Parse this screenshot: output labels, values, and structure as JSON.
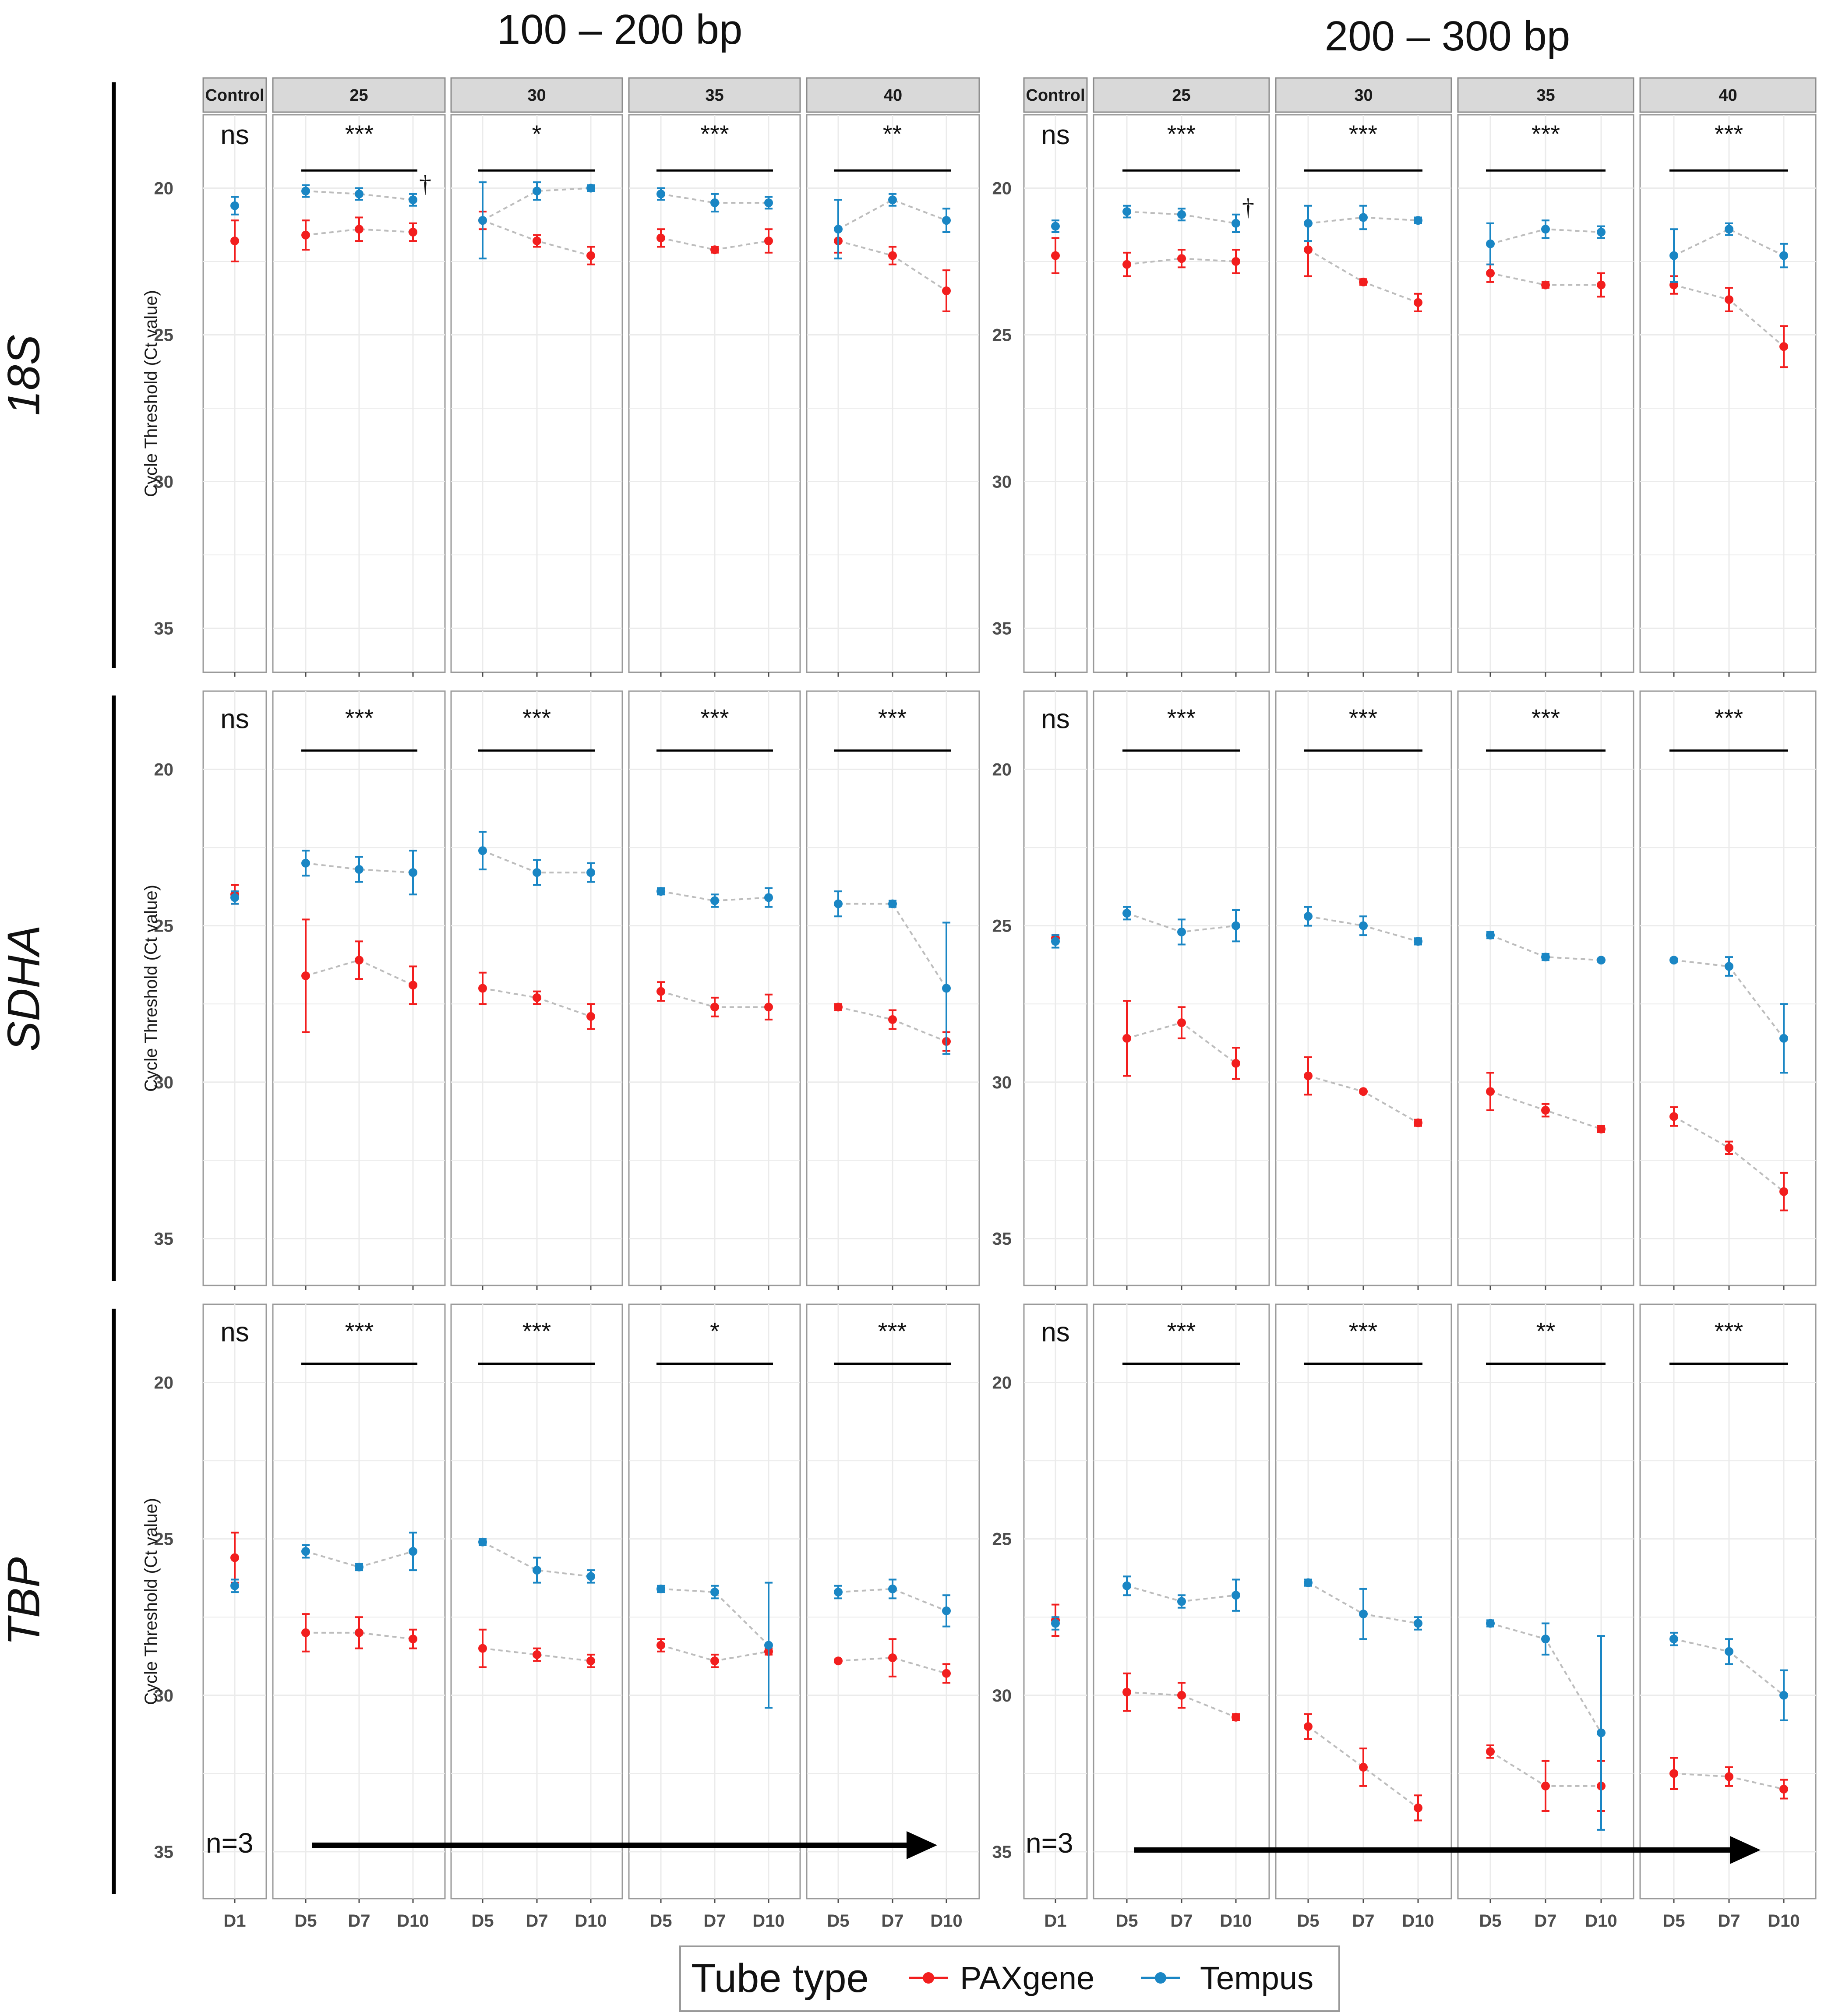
{
  "titles": {
    "left": "100 – 200 bp",
    "right": "200 – 300 bp"
  },
  "genes": [
    "18S",
    "SDHA",
    "TBP"
  ],
  "strip_labels": [
    "Control",
    "25",
    "30",
    "35",
    "40"
  ],
  "x_labels": {
    "control": [
      "D1"
    ],
    "temp": [
      "D5",
      "D7",
      "D10"
    ]
  },
  "y_axis": {
    "label": "Cycle Threshold (Ct value)",
    "ticks": [
      "20",
      "25",
      "30",
      "35"
    ],
    "min": 17.5,
    "max": 36.5
  },
  "n_label": "n=3",
  "legend": {
    "title": "Tube type",
    "items": [
      {
        "label": "PAXgene",
        "color": "#f21e1e"
      },
      {
        "label": "Tempus",
        "color": "#1a86c4"
      }
    ]
  },
  "colors": {
    "paxgene": "#f21e1e",
    "tempus": "#1a86c4",
    "strip_bg": "#d9d9d9",
    "grid": "#ebebeb",
    "connector": "#bdbdbd"
  },
  "chart_data": [
    {
      "type": "scatter",
      "gene": "18S",
      "group": "100 – 200 bp",
      "panels": [
        {
          "strip": "Control",
          "sig": "ns",
          "dagger": false,
          "paxgene": [
            21.8
          ],
          "paxgene_err": [
            0.7
          ],
          "tempus": [
            20.6
          ],
          "tempus_err": [
            0.3
          ]
        },
        {
          "strip": "25",
          "sig": "***",
          "dagger": true,
          "paxgene": [
            21.6,
            21.4,
            21.5
          ],
          "paxgene_err": [
            0.5,
            0.4,
            0.3
          ],
          "tempus": [
            20.1,
            20.2,
            20.4
          ],
          "tempus_err": [
            0.2,
            0.2,
            0.2
          ]
        },
        {
          "strip": "30",
          "sig": "*",
          "dagger": false,
          "paxgene": [
            21.1,
            21.8,
            22.3
          ],
          "paxgene_err": [
            0.3,
            0.2,
            0.3
          ],
          "tempus": [
            21.1,
            20.1,
            20.0
          ],
          "tempus_err": [
            1.3,
            0.3,
            0.1
          ]
        },
        {
          "strip": "35",
          "sig": "***",
          "dagger": false,
          "paxgene": [
            21.7,
            22.1,
            21.8
          ],
          "paxgene_err": [
            0.3,
            0.1,
            0.4
          ],
          "tempus": [
            20.2,
            20.5,
            20.5
          ],
          "tempus_err": [
            0.2,
            0.3,
            0.2
          ]
        },
        {
          "strip": "40",
          "sig": "**",
          "dagger": false,
          "paxgene": [
            21.8,
            22.3,
            23.5
          ],
          "paxgene_err": [
            0.4,
            0.3,
            0.7
          ],
          "tempus": [
            21.4,
            20.4,
            21.1
          ],
          "tempus_err": [
            1.0,
            0.2,
            0.4
          ]
        }
      ]
    },
    {
      "type": "scatter",
      "gene": "18S",
      "group": "200 – 300 bp",
      "panels": [
        {
          "strip": "Control",
          "sig": "ns",
          "dagger": false,
          "paxgene": [
            22.3
          ],
          "paxgene_err": [
            0.6
          ],
          "tempus": [
            21.3
          ],
          "tempus_err": [
            0.2
          ]
        },
        {
          "strip": "25",
          "sig": "***",
          "dagger": true,
          "paxgene": [
            22.6,
            22.4,
            22.5
          ],
          "paxgene_err": [
            0.4,
            0.3,
            0.4
          ],
          "tempus": [
            20.8,
            20.9,
            21.2
          ],
          "tempus_err": [
            0.2,
            0.2,
            0.3
          ]
        },
        {
          "strip": "30",
          "sig": "***",
          "dagger": false,
          "paxgene": [
            22.1,
            23.2,
            23.9
          ],
          "paxgene_err": [
            0.9,
            0.1,
            0.3
          ],
          "tempus": [
            21.2,
            21.0,
            21.1
          ],
          "tempus_err": [
            0.6,
            0.4,
            0.1
          ]
        },
        {
          "strip": "35",
          "sig": "***",
          "dagger": false,
          "paxgene": [
            22.9,
            23.3,
            23.3
          ],
          "paxgene_err": [
            0.3,
            0.1,
            0.4
          ],
          "tempus": [
            21.9,
            21.4,
            21.5
          ],
          "tempus_err": [
            0.7,
            0.3,
            0.2
          ]
        },
        {
          "strip": "40",
          "sig": "***",
          "dagger": false,
          "paxgene": [
            23.3,
            23.8,
            25.4
          ],
          "paxgene_err": [
            0.3,
            0.4,
            0.7
          ],
          "tempus": [
            22.3,
            21.4,
            22.3
          ],
          "tempus_err": [
            0.9,
            0.2,
            0.4
          ]
        }
      ]
    },
    {
      "type": "scatter",
      "gene": "SDHA",
      "group": "100 – 200 bp",
      "panels": [
        {
          "strip": "Control",
          "sig": "ns",
          "dagger": false,
          "paxgene": [
            24.0
          ],
          "paxgene_err": [
            0.3
          ],
          "tempus": [
            24.1
          ],
          "tempus_err": [
            0.2
          ]
        },
        {
          "strip": "25",
          "sig": "***",
          "dagger": false,
          "paxgene": [
            26.6,
            26.1,
            26.9
          ],
          "paxgene_err": [
            1.8,
            0.6,
            0.6
          ],
          "tempus": [
            23.0,
            23.2,
            23.3
          ],
          "tempus_err": [
            0.4,
            0.4,
            0.7
          ]
        },
        {
          "strip": "30",
          "sig": "***",
          "dagger": false,
          "paxgene": [
            27.0,
            27.3,
            27.9
          ],
          "paxgene_err": [
            0.5,
            0.2,
            0.4
          ],
          "tempus": [
            22.6,
            23.3,
            23.3
          ],
          "tempus_err": [
            0.6,
            0.4,
            0.3
          ]
        },
        {
          "strip": "35",
          "sig": "***",
          "dagger": false,
          "paxgene": [
            27.1,
            27.6,
            27.6
          ],
          "paxgene_err": [
            0.3,
            0.3,
            0.4
          ],
          "tempus": [
            23.9,
            24.2,
            24.1
          ],
          "tempus_err": [
            0.1,
            0.2,
            0.3
          ]
        },
        {
          "strip": "40",
          "sig": "***",
          "dagger": false,
          "paxgene": [
            27.6,
            28.0,
            28.7
          ],
          "paxgene_err": [
            0.1,
            0.3,
            0.3
          ],
          "tempus": [
            24.3,
            24.3,
            27.0
          ],
          "tempus_err": [
            0.4,
            0.1,
            2.1
          ]
        }
      ]
    },
    {
      "type": "scatter",
      "gene": "SDHA",
      "group": "200 – 300 bp",
      "panels": [
        {
          "strip": "Control",
          "sig": "ns",
          "dagger": false,
          "paxgene": [
            25.4
          ],
          "paxgene_err": [
            0.1
          ],
          "tempus": [
            25.5
          ],
          "tempus_err": [
            0.2
          ]
        },
        {
          "strip": "25",
          "sig": "***",
          "dagger": false,
          "paxgene": [
            28.6,
            28.1,
            29.4
          ],
          "paxgene_err": [
            1.2,
            0.5,
            0.5
          ],
          "tempus": [
            24.6,
            25.2,
            25.0
          ],
          "tempus_err": [
            0.2,
            0.4,
            0.5
          ]
        },
        {
          "strip": "30",
          "sig": "***",
          "dagger": false,
          "paxgene": [
            29.8,
            30.3,
            31.3
          ],
          "paxgene_err": [
            0.6,
            0.05,
            0.1
          ],
          "tempus": [
            24.7,
            25.0,
            25.5
          ],
          "tempus_err": [
            0.3,
            0.3,
            0.1
          ]
        },
        {
          "strip": "35",
          "sig": "***",
          "dagger": false,
          "paxgene": [
            30.3,
            30.9,
            31.5
          ],
          "paxgene_err": [
            0.6,
            0.2,
            0.1
          ],
          "tempus": [
            25.3,
            26.0,
            26.1
          ],
          "tempus_err": [
            0.1,
            0.1,
            0.05
          ]
        },
        {
          "strip": "40",
          "sig": "***",
          "dagger": false,
          "paxgene": [
            31.1,
            32.1,
            33.5
          ],
          "paxgene_err": [
            0.3,
            0.2,
            0.6
          ],
          "tempus": [
            26.1,
            26.3,
            28.6
          ],
          "tempus_err": [
            0.05,
            0.3,
            1.1
          ]
        }
      ]
    },
    {
      "type": "scatter",
      "gene": "TBP",
      "group": "100 – 200 bp",
      "panels": [
        {
          "strip": "Control",
          "sig": "ns",
          "dagger": false,
          "paxgene": [
            25.6
          ],
          "paxgene_err": [
            0.8
          ],
          "tempus": [
            26.5
          ],
          "tempus_err": [
            0.2
          ]
        },
        {
          "strip": "25",
          "sig": "***",
          "dagger": false,
          "paxgene": [
            28.0,
            28.0,
            28.2
          ],
          "paxgene_err": [
            0.6,
            0.5,
            0.3
          ],
          "tempus": [
            25.4,
            25.9,
            25.4
          ],
          "tempus_err": [
            0.2,
            0.1,
            0.6
          ]
        },
        {
          "strip": "30",
          "sig": "***",
          "dagger": false,
          "paxgene": [
            28.5,
            28.7,
            28.9
          ],
          "paxgene_err": [
            0.6,
            0.2,
            0.2
          ],
          "tempus": [
            25.1,
            26.0,
            26.2
          ],
          "tempus_err": [
            0.1,
            0.4,
            0.2
          ]
        },
        {
          "strip": "35",
          "sig": "*",
          "dagger": false,
          "paxgene": [
            28.4,
            28.9,
            28.6
          ],
          "paxgene_err": [
            0.2,
            0.2,
            0.1
          ],
          "tempus": [
            26.6,
            26.7,
            28.4
          ],
          "tempus_err": [
            0.1,
            0.2,
            2.0
          ]
        },
        {
          "strip": "40",
          "sig": "***",
          "dagger": false,
          "paxgene": [
            28.9,
            28.8,
            29.3
          ],
          "paxgene_err": [
            0.05,
            0.6,
            0.3
          ],
          "tempus": [
            26.7,
            26.6,
            27.3
          ],
          "tempus_err": [
            0.2,
            0.3,
            0.5
          ]
        }
      ]
    },
    {
      "type": "scatter",
      "gene": "TBP",
      "group": "200 – 300 bp",
      "panels": [
        {
          "strip": "Control",
          "sig": "ns",
          "dagger": false,
          "paxgene": [
            27.6
          ],
          "paxgene_err": [
            0.5
          ],
          "tempus": [
            27.7
          ],
          "tempus_err": [
            0.2
          ]
        },
        {
          "strip": "25",
          "sig": "***",
          "dagger": false,
          "paxgene": [
            29.9,
            30.0,
            30.7
          ],
          "paxgene_err": [
            0.6,
            0.4,
            0.1
          ],
          "tempus": [
            26.5,
            27.0,
            26.8
          ],
          "tempus_err": [
            0.3,
            0.2,
            0.5
          ]
        },
        {
          "strip": "30",
          "sig": "***",
          "dagger": false,
          "paxgene": [
            31.0,
            32.3,
            33.6
          ],
          "paxgene_err": [
            0.4,
            0.6,
            0.4
          ],
          "tempus": [
            26.4,
            27.4,
            27.7
          ],
          "tempus_err": [
            0.1,
            0.8,
            0.2
          ]
        },
        {
          "strip": "35",
          "sig": "**",
          "dagger": false,
          "paxgene": [
            31.8,
            32.9,
            32.9
          ],
          "paxgene_err": [
            0.2,
            0.8,
            0.8
          ],
          "tempus": [
            27.7,
            28.2,
            31.2
          ],
          "tempus_err": [
            0.1,
            0.5,
            3.1
          ]
        },
        {
          "strip": "40",
          "sig": "***",
          "dagger": false,
          "paxgene": [
            32.5,
            32.6,
            33.0
          ],
          "paxgene_err": [
            0.5,
            0.3,
            0.3
          ],
          "tempus": [
            28.2,
            28.6,
            30.0
          ],
          "tempus_err": [
            0.2,
            0.4,
            0.8
          ]
        }
      ]
    }
  ]
}
